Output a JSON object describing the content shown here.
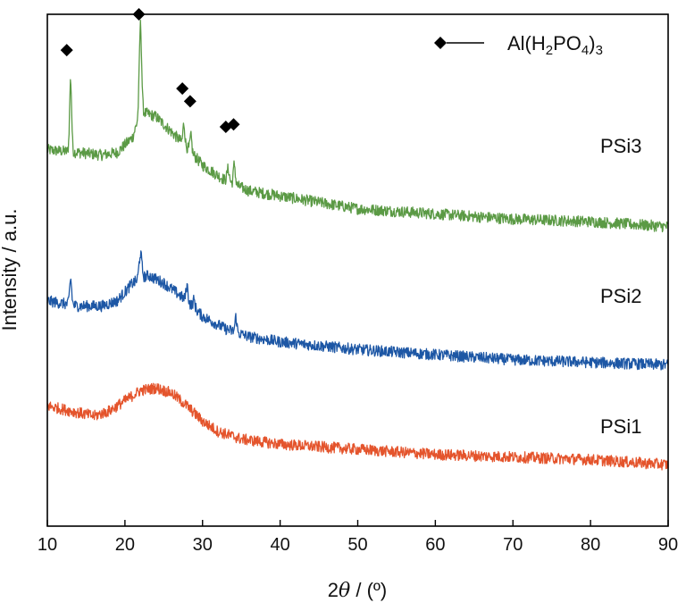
{
  "chart_data": {
    "type": "line",
    "xlabel_prefix": "2",
    "xlabel_theta": "θ",
    "xlabel_suffix": " / (º)",
    "ylabel": "Intensity / a.u.",
    "xlim": [
      10,
      90
    ],
    "xticks": [
      "10",
      "20",
      "30",
      "40",
      "50",
      "60",
      "70",
      "80",
      "90"
    ],
    "legend": {
      "position": "top-right",
      "marker": "diamond",
      "parts": [
        {
          "t": "Al(H",
          "sub": false
        },
        {
          "t": "2",
          "sub": true
        },
        {
          "t": "PO",
          "sub": false
        },
        {
          "t": "4",
          "sub": true
        },
        {
          "t": ")",
          "sub": false
        },
        {
          "t": "3",
          "sub": true
        }
      ]
    },
    "series": [
      {
        "name": "PSi3",
        "color": "#5b9a45",
        "baseline": [
          [
            10,
            0.735
          ],
          [
            14,
            0.73
          ],
          [
            17,
            0.725
          ],
          [
            19,
            0.73
          ],
          [
            21,
            0.76
          ],
          [
            22,
            0.81
          ],
          [
            24,
            0.8
          ],
          [
            26,
            0.77
          ],
          [
            28,
            0.74
          ],
          [
            30,
            0.705
          ],
          [
            33,
            0.675
          ],
          [
            36,
            0.655
          ],
          [
            40,
            0.645
          ],
          [
            50,
            0.62
          ],
          [
            60,
            0.61
          ],
          [
            70,
            0.6
          ],
          [
            80,
            0.595
          ],
          [
            90,
            0.585
          ]
        ],
        "peaks": [
          [
            13.0,
            0.14,
            0.13
          ],
          [
            22.0,
            0.17,
            0.15
          ],
          [
            27.6,
            0.04,
            0.12
          ],
          [
            28.5,
            0.03,
            0.12
          ],
          [
            33.3,
            0.025,
            0.15
          ],
          [
            34.1,
            0.04,
            0.12
          ]
        ]
      },
      {
        "name": "PSi2",
        "color": "#1d57a5",
        "baseline": [
          [
            10,
            0.44
          ],
          [
            14,
            0.43
          ],
          [
            17,
            0.43
          ],
          [
            19,
            0.44
          ],
          [
            21,
            0.475
          ],
          [
            23,
            0.49
          ],
          [
            25,
            0.475
          ],
          [
            28,
            0.44
          ],
          [
            30,
            0.41
          ],
          [
            33,
            0.385
          ],
          [
            36,
            0.37
          ],
          [
            40,
            0.36
          ],
          [
            50,
            0.345
          ],
          [
            60,
            0.335
          ],
          [
            70,
            0.325
          ],
          [
            80,
            0.32
          ],
          [
            90,
            0.315
          ]
        ],
        "peaks": [
          [
            13.0,
            0.05,
            0.13
          ],
          [
            22.0,
            0.05,
            0.18
          ],
          [
            28.0,
            0.03,
            0.13
          ],
          [
            28.9,
            0.015,
            0.13
          ],
          [
            34.3,
            0.03,
            0.12
          ]
        ]
      },
      {
        "name": "PSi1",
        "color": "#e4542c",
        "baseline": [
          [
            10,
            0.235
          ],
          [
            13,
            0.225
          ],
          [
            16,
            0.215
          ],
          [
            18,
            0.225
          ],
          [
            20,
            0.245
          ],
          [
            22,
            0.265
          ],
          [
            24,
            0.27
          ],
          [
            26,
            0.26
          ],
          [
            28,
            0.235
          ],
          [
            30,
            0.205
          ],
          [
            32,
            0.185
          ],
          [
            35,
            0.17
          ],
          [
            40,
            0.16
          ],
          [
            50,
            0.15
          ],
          [
            60,
            0.14
          ],
          [
            70,
            0.135
          ],
          [
            80,
            0.13
          ],
          [
            90,
            0.12
          ]
        ],
        "peaks": []
      }
    ],
    "markers": [
      [
        12.5,
        0.93
      ],
      [
        21.8,
        1.0
      ],
      [
        27.4,
        0.855
      ],
      [
        28.4,
        0.83
      ],
      [
        33.0,
        0.78
      ],
      [
        34.0,
        0.785
      ]
    ],
    "ytick_labels": false,
    "grid": false
  }
}
